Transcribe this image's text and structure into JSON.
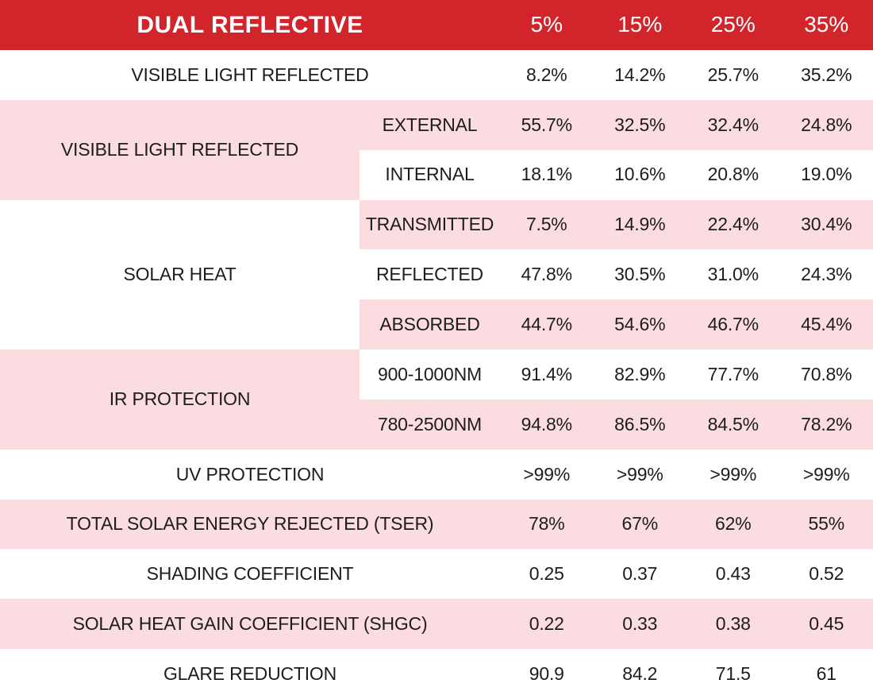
{
  "chart_data": {
    "type": "table",
    "title": "DUAL REFLECTIVE",
    "value_columns": [
      "5%",
      "15%",
      "25%",
      "35%"
    ],
    "rows": [
      {
        "label": "VISIBLE LIGHT REFLECTED",
        "values": [
          "8.2%",
          "14.2%",
          "25.7%",
          "35.2%"
        ]
      },
      {
        "label": "VISIBLE LIGHT REFLECTED",
        "subrows": [
          {
            "label": "EXTERNAL",
            "values": [
              "55.7%",
              "32.5%",
              "32.4%",
              "24.8%"
            ]
          },
          {
            "label": "INTERNAL",
            "values": [
              "18.1%",
              "10.6%",
              "20.8%",
              "19.0%"
            ]
          }
        ]
      },
      {
        "label": "SOLAR HEAT",
        "subrows": [
          {
            "label": "TRANSMITTED",
            "values": [
              "7.5%",
              "14.9%",
              "22.4%",
              "30.4%"
            ]
          },
          {
            "label": "REFLECTED",
            "values": [
              "47.8%",
              "30.5%",
              "31.0%",
              "24.3%"
            ]
          },
          {
            "label": "ABSORBED",
            "values": [
              "44.7%",
              "54.6%",
              "46.7%",
              "45.4%"
            ]
          }
        ]
      },
      {
        "label": "IR PROTECTION",
        "subrows": [
          {
            "label": "900-1000NM",
            "values": [
              "91.4%",
              "82.9%",
              "77.7%",
              "70.8%"
            ]
          },
          {
            "label": "780-2500NM",
            "values": [
              "94.8%",
              "86.5%",
              "84.5%",
              "78.2%"
            ]
          }
        ]
      },
      {
        "label": "UV PROTECTION",
        "values": [
          ">99%",
          ">99%",
          ">99%",
          ">99%"
        ]
      },
      {
        "label": "TOTAL SOLAR ENERGY REJECTED (TSER)",
        "values": [
          "78%",
          "67%",
          "62%",
          "55%"
        ]
      },
      {
        "label": "SHADING COEFFICIENT",
        "values": [
          "0.25",
          "0.37",
          "0.43",
          "0.52"
        ]
      },
      {
        "label": "SOLAR HEAT GAIN COEFFICIENT (SHGC)",
        "values": [
          "0.22",
          "0.33",
          "0.38",
          "0.45"
        ]
      },
      {
        "label": "GLARE REDUCTION",
        "values": [
          "90.9",
          "84.2",
          "71.5",
          "61"
        ]
      }
    ]
  },
  "colors": {
    "header_red": "#d2252b",
    "row_pink": "#fbdce1",
    "row_white": "#ffffff",
    "header_text": "#ffffff",
    "body_text": "#1d1d1b"
  }
}
